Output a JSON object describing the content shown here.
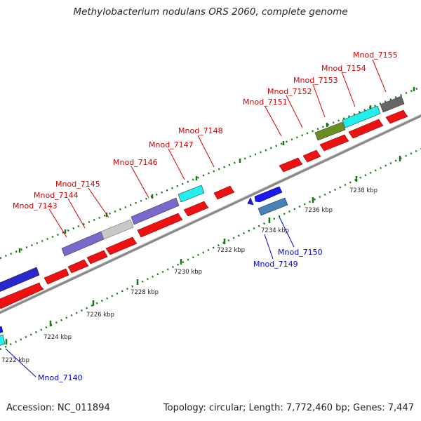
{
  "title": "Methylobacterium nodulans ORS 2060, complete genome",
  "accession": "Accession: NC_011894",
  "topology": "Topology: circular; Length: 7,772,460 bp; Genes: 7,447",
  "colors": {
    "forward_gene": "#ee1111",
    "reverse_gene": "#1a1aee",
    "backbone": "#8a8a8a",
    "ticks": "#117711",
    "top_label": "#d40000",
    "bottom_label": "#0000c8"
  },
  "scale_labels": [
    "7222 kbp",
    "7224 kbp",
    "7226 kbp",
    "7228 kbp",
    "7230 kbp",
    "7232 kbp",
    "7234 kbp",
    "7236 kbp",
    "7238 kbp"
  ],
  "top_genes": [
    "Mnod_7143",
    "Mnod_7144",
    "Mnod_7145",
    "Mnod_7146",
    "Mnod_7147",
    "Mnod_7148",
    "Mnod_7151",
    "Mnod_7152",
    "Mnod_7153",
    "Mnod_7154",
    "Mnod_7155"
  ],
  "bottom_genes": [
    "Mnod_7140",
    "Mnod_7149",
    "Mnod_7150"
  ]
}
